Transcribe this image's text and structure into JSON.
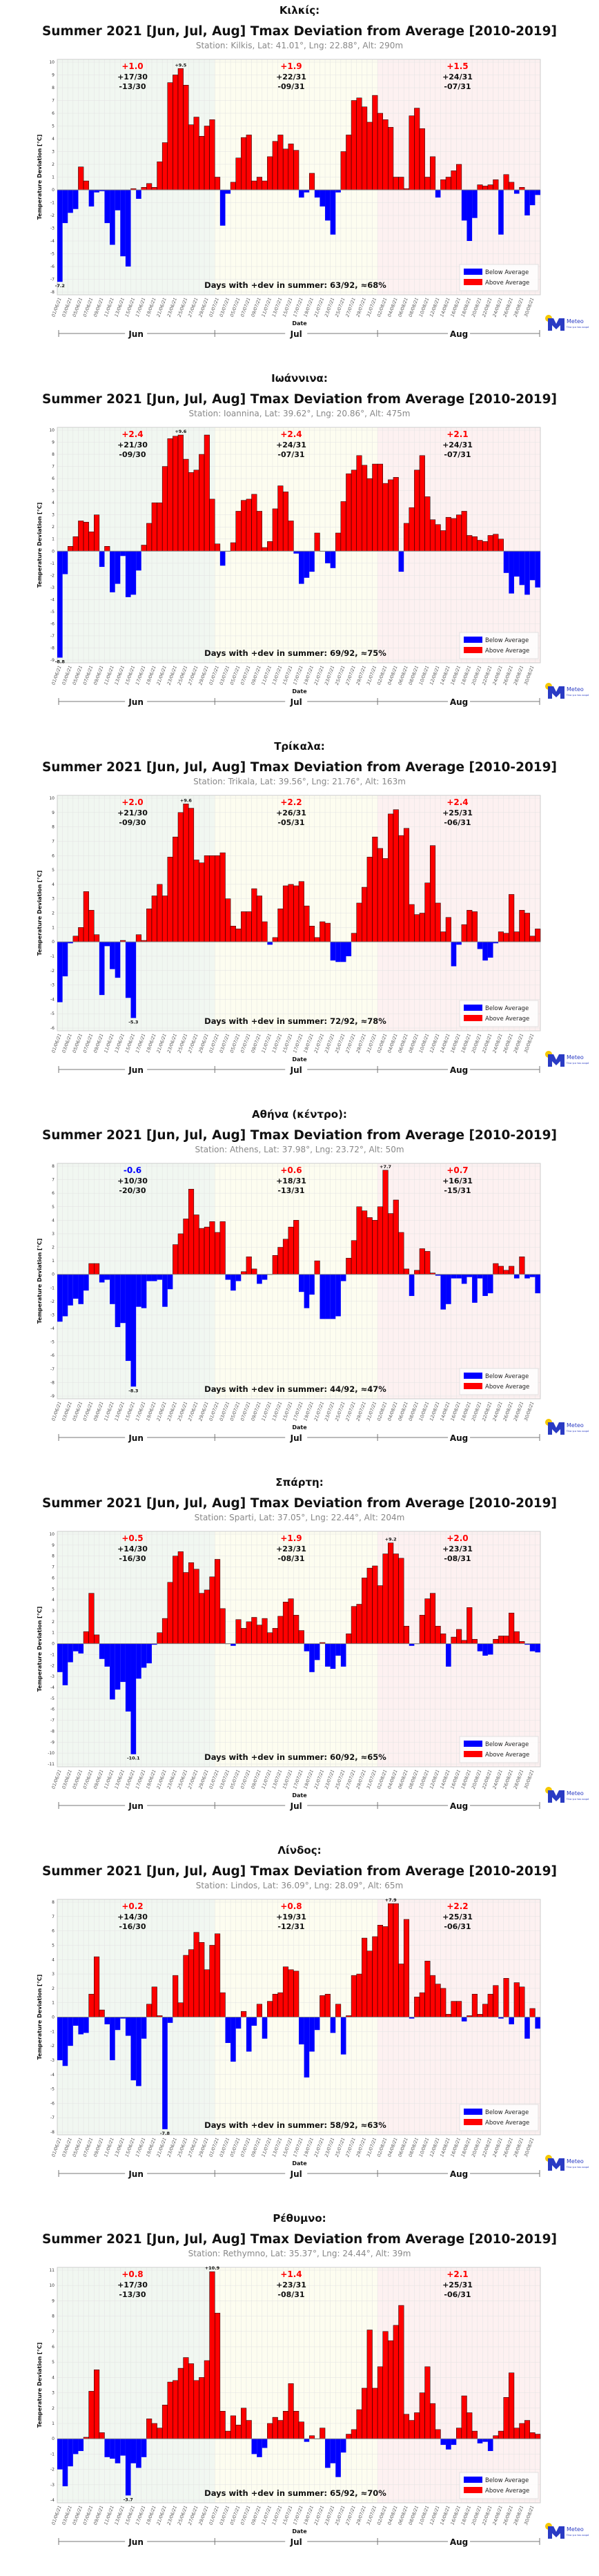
{
  "common": {
    "main_title": "Summer 2021 [Jun, Jul, Aug] Tmax Deviation from Average [2010-2019]",
    "ylabel": "Temperature Deviation [°C]",
    "xlabel": "Date",
    "months": [
      "Jun",
      "Jul",
      "Aug"
    ],
    "legend": [
      "Below Average",
      "Above Average"
    ],
    "logo": {
      "name": "Meteo",
      "tagline": "Όλα για τον καιρό"
    },
    "colors": {
      "above": "#ff0000",
      "below": "#0000ff",
      "jun_bg": "#f1f7f1",
      "jul_bg": "#fdfdf0",
      "aug_bg": "#fdf1f1"
    },
    "x_tick_labels": [
      "01/06/21",
      "03/06/21",
      "05/06/21",
      "07/06/21",
      "09/06/21",
      "11/06/21",
      "13/06/21",
      "15/06/21",
      "17/06/21",
      "19/06/21",
      "21/06/21",
      "23/06/21",
      "25/06/21",
      "27/06/21",
      "29/06/21",
      "01/07/21",
      "03/07/21",
      "05/07/21",
      "07/07/21",
      "09/07/21",
      "11/07/21",
      "13/07/21",
      "15/07/21",
      "17/07/21",
      "19/07/21",
      "21/07/21",
      "23/07/21",
      "25/07/21",
      "27/07/21",
      "29/07/21",
      "31/07/21",
      "02/08/21",
      "04/08/21",
      "06/08/21",
      "08/08/21",
      "10/08/21",
      "12/08/21",
      "14/08/21",
      "16/08/21",
      "18/08/21",
      "20/08/21",
      "22/08/21",
      "24/08/21",
      "26/08/21",
      "28/08/21",
      "30/08/21"
    ]
  },
  "chart_data": [
    {
      "type": "bar",
      "section_title": "Κιλκίς:",
      "station": "Station: Kilkis, Lat: 41.01°, Lng: 22.88°, Alt: 290m",
      "ylim": [
        -8,
        10
      ],
      "grid": true,
      "legend_position": "bottom-right",
      "max_label": "+9.5",
      "min_label": "-7.2",
      "month_stats": [
        {
          "mean": "+1.0",
          "pos": "+17/30",
          "neg": "-13/30"
        },
        {
          "mean": "+1.9",
          "pos": "+22/31",
          "neg": "-09/31"
        },
        {
          "mean": "+1.5",
          "pos": "+24/31",
          "neg": "-07/31"
        }
      ],
      "summary": "Days with +dev in summer: 63/92, ≈68%",
      "values": [
        -7.2,
        -2.6,
        -1.8,
        -1.5,
        1.8,
        0.7,
        -1.3,
        -0.2,
        -0.1,
        -2.6,
        -4.3,
        -1.6,
        -5.2,
        -6.0,
        0.1,
        -0.7,
        0.2,
        0.5,
        0.2,
        2.2,
        3.7,
        8.4,
        9.0,
        9.5,
        8.2,
        5.1,
        5.7,
        4.2,
        5.0,
        5.5,
        1.0,
        -2.8,
        -0.3,
        0.6,
        2.5,
        4.1,
        4.3,
        0.7,
        1.0,
        0.7,
        2.6,
        3.8,
        4.3,
        3.2,
        3.6,
        3.1,
        -0.6,
        -0.2,
        1.3,
        -0.6,
        -1.3,
        -2.4,
        -3.5,
        -0.2,
        3.0,
        4.3,
        7.0,
        7.2,
        6.5,
        5.3,
        7.4,
        6.0,
        5.5,
        4.9,
        1.0,
        1.0,
        0.1,
        5.8,
        6.4,
        4.8,
        1.0,
        2.6,
        -0.6,
        0.8,
        1.0,
        1.5,
        2.0,
        -2.4,
        -4.0,
        -2.2,
        0.4,
        0.3,
        0.4,
        0.8,
        -3.5,
        1.2,
        0.6,
        -0.3,
        0.2,
        -2.0,
        -1.2,
        -0.4
      ]
    },
    {
      "type": "bar",
      "section_title": "Ιωάννινα:",
      "station": "Station: Ioannina, Lat: 39.62°, Lng: 20.86°, Alt: 475m",
      "ylim": [
        -9,
        10
      ],
      "grid": true,
      "legend_position": "bottom-right",
      "max_label": "+9.6",
      "min_label": "-8.8",
      "month_stats": [
        {
          "mean": "+2.4",
          "pos": "+21/30",
          "neg": "-09/30"
        },
        {
          "mean": "+2.4",
          "pos": "+24/31",
          "neg": "-07/31"
        },
        {
          "mean": "+2.1",
          "pos": "+24/31",
          "neg": "-07/31"
        }
      ],
      "summary": "Days with +dev in summer: 69/92, ≈75%",
      "values": [
        -8.8,
        -1.9,
        0.4,
        1.2,
        2.5,
        2.4,
        1.6,
        3.0,
        -1.3,
        0.4,
        -3.4,
        -2.7,
        -0.4,
        -3.8,
        -3.6,
        -1.6,
        0.5,
        2.3,
        4.0,
        4.0,
        7.0,
        9.3,
        9.5,
        9.6,
        7.6,
        6.5,
        6.7,
        8.0,
        9.6,
        4.3,
        0.6,
        -1.2,
        0.0,
        0.7,
        3.3,
        4.2,
        4.3,
        4.7,
        3.3,
        0.3,
        0.8,
        3.5,
        5.4,
        4.9,
        2.5,
        -0.2,
        -2.7,
        -2.2,
        -1.7,
        1.5,
        0.0,
        -1.0,
        -1.4,
        1.5,
        4.1,
        6.4,
        6.7,
        7.9,
        7.1,
        6.0,
        7.2,
        7.2,
        5.6,
        5.9,
        6.1,
        -1.7,
        2.3,
        3.6,
        6.7,
        7.9,
        4.5,
        2.6,
        2.2,
        1.7,
        2.8,
        2.7,
        3.0,
        3.3,
        1.3,
        1.2,
        0.9,
        0.8,
        1.3,
        1.4,
        1.0,
        -1.8,
        -3.5,
        -2.1,
        -2.8,
        -3.6,
        -2.4,
        -3.0
      ]
    },
    {
      "type": "bar",
      "section_title": "Τρίκαλα:",
      "station": "Station: Trikala, Lat: 39.56°, Lng: 21.76°, Alt: 163m",
      "ylim": [
        -6,
        10
      ],
      "grid": true,
      "legend_position": "bottom-right",
      "max_label": "+9.6",
      "min_label": "-5.3",
      "month_stats": [
        {
          "mean": "+2.0",
          "pos": "+21/30",
          "neg": "-09/30"
        },
        {
          "mean": "+2.2",
          "pos": "+26/31",
          "neg": "-05/31"
        },
        {
          "mean": "+2.4",
          "pos": "+25/31",
          "neg": "-06/31"
        }
      ],
      "summary": "Days with +dev in summer: 72/92, ≈78%",
      "values": [
        -4.2,
        -2.4,
        -0.1,
        0.4,
        1.0,
        3.5,
        2.2,
        0.5,
        -3.7,
        -0.3,
        -1.9,
        -2.5,
        0.1,
        -3.9,
        -5.3,
        0.5,
        0.1,
        2.3,
        3.2,
        4.0,
        3.2,
        5.9,
        7.3,
        9.0,
        9.6,
        9.3,
        5.7,
        5.5,
        6.0,
        6.0,
        6.0,
        6.2,
        3.0,
        1.1,
        0.9,
        2.1,
        2.1,
        3.7,
        3.2,
        1.4,
        -0.2,
        0.3,
        2.3,
        3.9,
        4.0,
        3.9,
        4.2,
        2.5,
        1.1,
        0.3,
        1.4,
        1.3,
        -1.3,
        -1.4,
        -1.4,
        -1.0,
        0.6,
        2.7,
        3.8,
        5.9,
        7.3,
        6.5,
        5.8,
        8.9,
        9.2,
        7.4,
        7.9,
        2.6,
        1.9,
        2.0,
        4.1,
        6.7,
        2.7,
        0.7,
        1.7,
        -1.7,
        -0.2,
        1.2,
        2.2,
        2.1,
        -0.5,
        -1.3,
        -1.1,
        -0.1,
        0.7,
        0.6,
        3.3,
        0.7,
        2.2,
        2.0,
        0.4,
        0.9
      ]
    },
    {
      "type": "bar",
      "section_title": "Αθήνα (κέντρο):",
      "station": "Station: Athens, Lat: 37.98°, Lng: 23.72°, Alt: 50m",
      "ylim": [
        -9,
        8
      ],
      "grid": true,
      "legend_position": "bottom-right",
      "max_label": "+7.7",
      "min_label": "-8.3",
      "month_stats": [
        {
          "mean": "-0.6",
          "pos": "+10/30",
          "neg": "-20/30"
        },
        {
          "mean": "+0.6",
          "pos": "+18/31",
          "neg": "-13/31"
        },
        {
          "mean": "+0.7",
          "pos": "+16/31",
          "neg": "-15/31"
        }
      ],
      "summary": "Days with +dev in summer: 44/92, ≈47%",
      "values": [
        -3.5,
        -3.1,
        -2.3,
        -1.8,
        -2.2,
        -1.2,
        0.8,
        0.8,
        -0.6,
        -0.4,
        -2.2,
        -3.9,
        -3.6,
        -6.4,
        -8.3,
        -2.4,
        -2.5,
        -0.5,
        -0.5,
        -0.4,
        -2.4,
        -1.1,
        2.2,
        3.0,
        4.1,
        6.3,
        4.4,
        3.4,
        3.5,
        3.9,
        3.1,
        3.9,
        -0.4,
        -1.2,
        -0.5,
        0.2,
        1.3,
        0.4,
        -0.7,
        -0.4,
        0.0,
        1.4,
        2.0,
        2.6,
        3.5,
        4.0,
        -1.3,
        -2.5,
        -1.5,
        1.0,
        -3.3,
        -3.3,
        -3.3,
        -3.1,
        -0.5,
        1.2,
        2.5,
        5.0,
        4.7,
        4.2,
        4.0,
        5.0,
        7.7,
        4.5,
        5.5,
        3.1,
        0.4,
        -1.6,
        0.3,
        1.9,
        1.7,
        0.1,
        -0.1,
        -2.6,
        -2.2,
        -0.3,
        -0.3,
        -0.7,
        -0.2,
        -2.1,
        -0.3,
        -1.6,
        -1.4,
        0.8,
        0.6,
        0.3,
        0.6,
        -0.3,
        1.3,
        -0.3,
        -0.2,
        -1.4
      ]
    },
    {
      "type": "bar",
      "section_title": "Σπάρτη:",
      "station": "Station: Sparti, Lat: 37.05°, Lng: 22.44°, Alt: 204m",
      "ylim": [
        -11,
        10
      ],
      "grid": true,
      "legend_position": "bottom-right",
      "max_label": "+9.2",
      "min_label": "-10.1",
      "month_stats": [
        {
          "mean": "+0.5",
          "pos": "+14/30",
          "neg": "-16/30"
        },
        {
          "mean": "+1.9",
          "pos": "+23/31",
          "neg": "-08/31"
        },
        {
          "mean": "+2.0",
          "pos": "+23/31",
          "neg": "-08/31"
        }
      ],
      "summary": "Days with +dev in summer: 60/92, ≈65%",
      "values": [
        -2.6,
        -3.8,
        -1.7,
        -0.7,
        -0.9,
        1.1,
        4.6,
        0.8,
        -1.4,
        -2.1,
        -5.1,
        -4.2,
        -3.5,
        -6.2,
        -10.1,
        -3.2,
        -2.2,
        -1.8,
        -0.1,
        1.0,
        2.3,
        5.6,
        8.0,
        8.4,
        6.5,
        7.4,
        6.8,
        4.6,
        4.9,
        6.1,
        7.7,
        3.2,
        0.0,
        -0.2,
        2.2,
        1.4,
        2.0,
        2.4,
        1.7,
        2.3,
        1.0,
        1.4,
        2.5,
        3.8,
        4.1,
        2.6,
        1.2,
        -0.7,
        -2.6,
        -1.5,
        0.1,
        -2.1,
        -2.3,
        -1.1,
        -2.1,
        0.9,
        3.4,
        3.6,
        6.0,
        6.9,
        7.1,
        5.3,
        8.2,
        9.2,
        8.2,
        7.8,
        1.6,
        -0.2,
        0.0,
        2.6,
        4.1,
        4.6,
        1.6,
        0.9,
        -2.1,
        0.6,
        1.3,
        0.3,
        3.3,
        0.4,
        -0.7,
        -1.1,
        -1.0,
        0.4,
        0.7,
        0.7,
        2.8,
        1.1,
        0.2,
        -0.1,
        -0.7,
        -0.8
      ]
    },
    {
      "type": "bar",
      "section_title": "Λίνδος:",
      "station": "Station: Lindos, Lat: 36.09°, Lng: 28.09°, Alt: 65m",
      "ylim": [
        -8,
        8
      ],
      "grid": true,
      "legend_position": "bottom-right",
      "max_label": "+7.9",
      "min_label": "-7.8",
      "month_stats": [
        {
          "mean": "+0.2",
          "pos": "+14/30",
          "neg": "-16/30"
        },
        {
          "mean": "+0.8",
          "pos": "+19/31",
          "neg": "-12/31"
        },
        {
          "mean": "+2.2",
          "pos": "+25/31",
          "neg": "-06/31"
        }
      ],
      "summary": "Days with +dev in summer: 58/92, ≈63%",
      "values": [
        -3.0,
        -3.4,
        -2.0,
        -0.6,
        -1.2,
        -1.1,
        1.6,
        4.2,
        0.5,
        -0.5,
        -3.0,
        -0.9,
        -0.1,
        -1.3,
        -4.4,
        -4.8,
        -1.5,
        0.9,
        2.1,
        0.1,
        -7.8,
        -0.4,
        2.9,
        1.0,
        4.3,
        4.7,
        5.9,
        5.2,
        3.3,
        5.0,
        5.8,
        1.7,
        -1.8,
        -3.1,
        -0.8,
        0.4,
        -2.4,
        -0.6,
        0.9,
        -1.5,
        1.1,
        1.6,
        1.7,
        3.5,
        3.3,
        3.2,
        -1.9,
        -4.2,
        -2.4,
        -0.9,
        1.5,
        1.6,
        -1.1,
        0.9,
        -2.6,
        0.1,
        2.9,
        3.0,
        5.5,
        4.6,
        5.6,
        6.4,
        6.3,
        7.9,
        7.9,
        3.7,
        6.8,
        -0.1,
        1.4,
        1.7,
        3.9,
        2.9,
        2.3,
        2.0,
        0.2,
        1.1,
        1.1,
        -0.3,
        0.1,
        1.6,
        0.2,
        0.9,
        1.6,
        2.2,
        -0.1,
        2.7,
        -0.5,
        2.4,
        2.1,
        -1.5,
        0.6,
        -0.8
      ]
    },
    {
      "type": "bar",
      "section_title": "Ρέθυμνο:",
      "station": "Station: Rethymno, Lat: 35.37°, Lng: 24.44°, Alt: 39m",
      "ylim": [
        -4,
        11
      ],
      "grid": true,
      "legend_position": "bottom-right",
      "max_label": "+10.9",
      "min_label": "-3.7",
      "month_stats": [
        {
          "mean": "+0.8",
          "pos": "+17/30",
          "neg": "-13/30"
        },
        {
          "mean": "+1.4",
          "pos": "+23/31",
          "neg": "-08/31"
        },
        {
          "mean": "+2.1",
          "pos": "+25/31",
          "neg": "-06/31"
        }
      ],
      "summary": "Days with +dev in summer: 65/92, ≈70%",
      "values": [
        -2.0,
        -3.1,
        -1.8,
        -1.0,
        -0.8,
        0.1,
        3.1,
        4.5,
        0.4,
        -1.2,
        -1.3,
        -1.6,
        -1.1,
        -3.7,
        -1.6,
        -1.9,
        -1.2,
        1.3,
        1.0,
        0.7,
        2.2,
        3.7,
        3.8,
        4.6,
        5.3,
        4.9,
        3.8,
        4.0,
        5.1,
        10.9,
        8.2,
        1.8,
        0.5,
        1.5,
        0.9,
        2.0,
        1.2,
        -1.0,
        -1.2,
        -0.6,
        1.0,
        1.4,
        1.2,
        1.8,
        3.6,
        1.8,
        1.1,
        -0.2,
        0.2,
        0.0,
        0.7,
        -1.9,
        -1.6,
        -2.5,
        -0.9,
        0.3,
        0.6,
        1.9,
        3.3,
        7.1,
        3.3,
        4.7,
        7.0,
        6.4,
        7.4,
        8.7,
        1.6,
        1.2,
        1.7,
        3.0,
        4.7,
        2.3,
        0.6,
        -0.4,
        -0.7,
        -0.4,
        0.7,
        2.8,
        1.7,
        0.5,
        -0.3,
        -0.2,
        -0.8,
        0.2,
        0.5,
        2.7,
        4.3,
        0.7,
        1.0,
        1.2,
        0.4,
        0.3
      ]
    }
  ]
}
